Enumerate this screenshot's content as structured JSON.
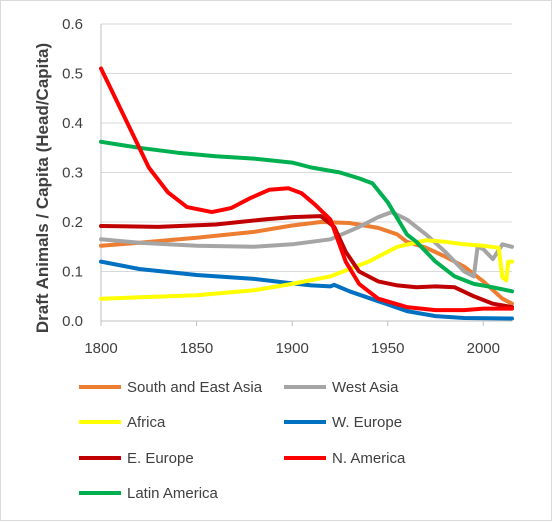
{
  "chart_data": {
    "type": "line",
    "title": "",
    "xlabel": "",
    "ylabel": "Draft Animals / Capita (Head/Capita)",
    "xlim": [
      1800,
      2015
    ],
    "ylim": [
      0,
      0.6
    ],
    "x_ticks": [
      1800,
      1850,
      1900,
      1950,
      2000
    ],
    "y_ticks": [
      0,
      0.1,
      0.2,
      0.3,
      0.4,
      0.5,
      0.6
    ],
    "y_tick_labels": [
      "0.0",
      "0.1",
      "0.2",
      "0.3",
      "0.4",
      "0.5",
      "0.6"
    ],
    "grid": "horizontal",
    "legend_position": "bottom",
    "series": [
      {
        "name": "South and East Asia",
        "color": "#ED7D31",
        "points": [
          [
            1800,
            0.152
          ],
          [
            1820,
            0.158
          ],
          [
            1850,
            0.168
          ],
          [
            1880,
            0.18
          ],
          [
            1900,
            0.193
          ],
          [
            1915,
            0.2
          ],
          [
            1930,
            0.198
          ],
          [
            1945,
            0.188
          ],
          [
            1955,
            0.175
          ],
          [
            1960,
            0.16
          ],
          [
            1970,
            0.148
          ],
          [
            1980,
            0.13
          ],
          [
            1990,
            0.11
          ],
          [
            2000,
            0.08
          ],
          [
            2010,
            0.045
          ],
          [
            2015,
            0.035
          ]
        ]
      },
      {
        "name": "West Asia",
        "color": "#A5A5A5",
        "points": [
          [
            1800,
            0.165
          ],
          [
            1820,
            0.158
          ],
          [
            1850,
            0.152
          ],
          [
            1880,
            0.15
          ],
          [
            1900,
            0.155
          ],
          [
            1920,
            0.165
          ],
          [
            1935,
            0.19
          ],
          [
            1945,
            0.21
          ],
          [
            1952,
            0.22
          ],
          [
            1960,
            0.205
          ],
          [
            1970,
            0.175
          ],
          [
            1980,
            0.14
          ],
          [
            1990,
            0.1
          ],
          [
            1995,
            0.09
          ],
          [
            1997,
            0.15
          ],
          [
            2000,
            0.145
          ],
          [
            2005,
            0.125
          ],
          [
            2010,
            0.155
          ],
          [
            2015,
            0.15
          ]
        ]
      },
      {
        "name": "Africa",
        "color": "#FFFF00",
        "points": [
          [
            1800,
            0.045
          ],
          [
            1850,
            0.052
          ],
          [
            1880,
            0.062
          ],
          [
            1900,
            0.075
          ],
          [
            1920,
            0.09
          ],
          [
            1940,
            0.12
          ],
          [
            1955,
            0.15
          ],
          [
            1970,
            0.163
          ],
          [
            1980,
            0.16
          ],
          [
            1990,
            0.155
          ],
          [
            2000,
            0.152
          ],
          [
            2008,
            0.148
          ],
          [
            2010,
            0.088
          ],
          [
            2012,
            0.082
          ],
          [
            2013,
            0.12
          ],
          [
            2015,
            0.12
          ]
        ]
      },
      {
        "name": "W. Europe",
        "color": "#0070C0",
        "points": [
          [
            1800,
            0.12
          ],
          [
            1820,
            0.105
          ],
          [
            1850,
            0.093
          ],
          [
            1880,
            0.085
          ],
          [
            1900,
            0.076
          ],
          [
            1910,
            0.072
          ],
          [
            1920,
            0.07
          ],
          [
            1922,
            0.073
          ],
          [
            1930,
            0.06
          ],
          [
            1945,
            0.04
          ],
          [
            1960,
            0.02
          ],
          [
            1975,
            0.01
          ],
          [
            1990,
            0.006
          ],
          [
            2015,
            0.005
          ]
        ]
      },
      {
        "name": "E. Europe",
        "color": "#C00000",
        "points": [
          [
            1800,
            0.192
          ],
          [
            1830,
            0.19
          ],
          [
            1860,
            0.195
          ],
          [
            1885,
            0.205
          ],
          [
            1900,
            0.21
          ],
          [
            1915,
            0.212
          ],
          [
            1922,
            0.19
          ],
          [
            1928,
            0.14
          ],
          [
            1935,
            0.1
          ],
          [
            1945,
            0.08
          ],
          [
            1955,
            0.072
          ],
          [
            1965,
            0.068
          ],
          [
            1975,
            0.07
          ],
          [
            1985,
            0.068
          ],
          [
            1995,
            0.05
          ],
          [
            2005,
            0.035
          ],
          [
            2015,
            0.028
          ]
        ]
      },
      {
        "name": "N. America",
        "color": "#FF0000",
        "points": [
          [
            1800,
            0.51
          ],
          [
            1805,
            0.47
          ],
          [
            1815,
            0.39
          ],
          [
            1825,
            0.31
          ],
          [
            1835,
            0.26
          ],
          [
            1845,
            0.23
          ],
          [
            1858,
            0.22
          ],
          [
            1868,
            0.228
          ],
          [
            1878,
            0.248
          ],
          [
            1888,
            0.265
          ],
          [
            1898,
            0.268
          ],
          [
            1905,
            0.258
          ],
          [
            1912,
            0.235
          ],
          [
            1920,
            0.205
          ],
          [
            1928,
            0.12
          ],
          [
            1935,
            0.075
          ],
          [
            1945,
            0.045
          ],
          [
            1960,
            0.028
          ],
          [
            1975,
            0.022
          ],
          [
            1990,
            0.022
          ],
          [
            2000,
            0.025
          ],
          [
            2015,
            0.025
          ]
        ]
      },
      {
        "name": "Latin America",
        "color": "#00B050",
        "points": [
          [
            1800,
            0.362
          ],
          [
            1820,
            0.35
          ],
          [
            1840,
            0.34
          ],
          [
            1860,
            0.333
          ],
          [
            1880,
            0.328
          ],
          [
            1900,
            0.32
          ],
          [
            1910,
            0.31
          ],
          [
            1925,
            0.3
          ],
          [
            1935,
            0.288
          ],
          [
            1942,
            0.278
          ],
          [
            1950,
            0.24
          ],
          [
            1960,
            0.175
          ],
          [
            1965,
            0.16
          ],
          [
            1975,
            0.12
          ],
          [
            1985,
            0.09
          ],
          [
            1995,
            0.075
          ],
          [
            2005,
            0.068
          ],
          [
            2015,
            0.06
          ]
        ]
      }
    ]
  }
}
